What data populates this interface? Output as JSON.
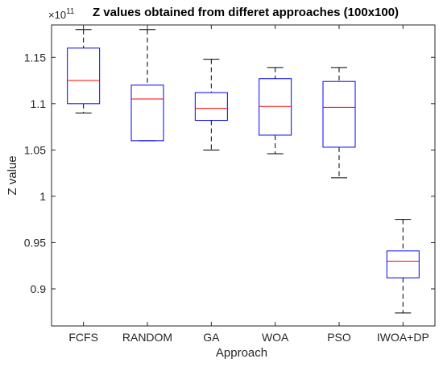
{
  "chart_data": {
    "type": "box",
    "title": "Z values obtained from differet approaches (100x100)",
    "xlabel": "Approach",
    "ylabel": "Z value",
    "y_exponent_label": "×10",
    "y_exponent_power": "11",
    "ylim": [
      0.86,
      1.185
    ],
    "yticks": [
      {
        "value": 0.9,
        "label": "0.9"
      },
      {
        "value": 0.95,
        "label": "0.95"
      },
      {
        "value": 1.0,
        "label": "1"
      },
      {
        "value": 1.05,
        "label": "1.05"
      },
      {
        "value": 1.1,
        "label": "1.1"
      },
      {
        "value": 1.15,
        "label": "1.15"
      }
    ],
    "grid": false,
    "colors": {
      "box": "#0000ff",
      "median": "#ff0000",
      "whisker": "#000000",
      "axis": "#262626"
    },
    "categories": [
      "FCFS",
      "RANDOM",
      "GA",
      "WOA",
      "PSO",
      "IWOA+DP"
    ],
    "boxes": [
      {
        "min": 1.09,
        "q1": 1.1,
        "median": 1.125,
        "q3": 1.16,
        "max": 1.18
      },
      {
        "min": 1.06,
        "q1": 1.06,
        "median": 1.105,
        "q3": 1.12,
        "max": 1.18
      },
      {
        "min": 1.05,
        "q1": 1.082,
        "median": 1.095,
        "q3": 1.112,
        "max": 1.148
      },
      {
        "min": 1.046,
        "q1": 1.066,
        "median": 1.097,
        "q3": 1.127,
        "max": 1.139
      },
      {
        "min": 1.02,
        "q1": 1.053,
        "median": 1.096,
        "q3": 1.124,
        "max": 1.139
      },
      {
        "min": 0.874,
        "q1": 0.912,
        "median": 0.93,
        "q3": 0.941,
        "max": 0.975
      }
    ]
  }
}
